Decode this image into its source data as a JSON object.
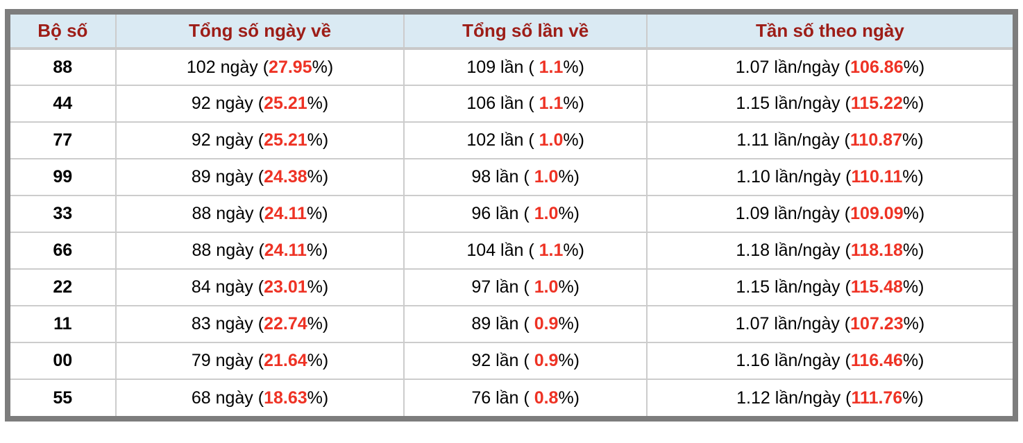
{
  "colors": {
    "header_bg": "#daeaf3",
    "header_text": "#9d1d17",
    "highlight_red": "#ee3224",
    "frame_border": "#7d7d7d",
    "grid_line": "#cccccc"
  },
  "table": {
    "columns": [
      {
        "label": "Bộ số"
      },
      {
        "label": "Tổng số ngày về"
      },
      {
        "label": "Tổng số lần về"
      },
      {
        "label": "Tần số theo ngày"
      }
    ],
    "rows": [
      {
        "pair": "88",
        "days": {
          "prefix": "102 ngày (",
          "highlight": "27.95",
          "suffix": "%)"
        },
        "times": {
          "prefix": "109 lần ( ",
          "highlight": "1.1",
          "suffix": "%)"
        },
        "freq": {
          "prefix": "1.07 lần/ngày (",
          "highlight": "106.86",
          "suffix": "%)"
        }
      },
      {
        "pair": "44",
        "days": {
          "prefix": "92 ngày (",
          "highlight": "25.21",
          "suffix": "%)"
        },
        "times": {
          "prefix": "106 lần ( ",
          "highlight": "1.1",
          "suffix": "%)"
        },
        "freq": {
          "prefix": "1.15 lần/ngày (",
          "highlight": "115.22",
          "suffix": "%)"
        }
      },
      {
        "pair": "77",
        "days": {
          "prefix": "92 ngày (",
          "highlight": "25.21",
          "suffix": "%)"
        },
        "times": {
          "prefix": "102 lần ( ",
          "highlight": "1.0",
          "suffix": "%)"
        },
        "freq": {
          "prefix": "1.11 lần/ngày (",
          "highlight": "110.87",
          "suffix": "%)"
        }
      },
      {
        "pair": "99",
        "days": {
          "prefix": "89 ngày (",
          "highlight": "24.38",
          "suffix": "%)"
        },
        "times": {
          "prefix": "98 lần ( ",
          "highlight": "1.0",
          "suffix": "%)"
        },
        "freq": {
          "prefix": "1.10 lần/ngày (",
          "highlight": "110.11",
          "suffix": "%)"
        }
      },
      {
        "pair": "33",
        "days": {
          "prefix": "88 ngày (",
          "highlight": "24.11",
          "suffix": "%)"
        },
        "times": {
          "prefix": "96 lần ( ",
          "highlight": "1.0",
          "suffix": "%)"
        },
        "freq": {
          "prefix": "1.09 lần/ngày (",
          "highlight": "109.09",
          "suffix": "%)"
        }
      },
      {
        "pair": "66",
        "days": {
          "prefix": "88 ngày (",
          "highlight": "24.11",
          "suffix": "%)"
        },
        "times": {
          "prefix": "104 lần ( ",
          "highlight": "1.1",
          "suffix": "%)"
        },
        "freq": {
          "prefix": "1.18 lần/ngày (",
          "highlight": "118.18",
          "suffix": "%)"
        }
      },
      {
        "pair": "22",
        "days": {
          "prefix": "84 ngày (",
          "highlight": "23.01",
          "suffix": "%)"
        },
        "times": {
          "prefix": "97 lần ( ",
          "highlight": "1.0",
          "suffix": "%)"
        },
        "freq": {
          "prefix": "1.15 lần/ngày (",
          "highlight": "115.48",
          "suffix": "%)"
        }
      },
      {
        "pair": "11",
        "days": {
          "prefix": "83 ngày (",
          "highlight": "22.74",
          "suffix": "%)"
        },
        "times": {
          "prefix": "89 lần ( ",
          "highlight": "0.9",
          "suffix": "%)"
        },
        "freq": {
          "prefix": "1.07 lần/ngày (",
          "highlight": "107.23",
          "suffix": "%)"
        }
      },
      {
        "pair": "00",
        "days": {
          "prefix": "79 ngày (",
          "highlight": "21.64",
          "suffix": "%)"
        },
        "times": {
          "prefix": "92 lần ( ",
          "highlight": "0.9",
          "suffix": "%)"
        },
        "freq": {
          "prefix": "1.16 lần/ngày (",
          "highlight": "116.46",
          "suffix": "%)"
        }
      },
      {
        "pair": "55",
        "days": {
          "prefix": "68 ngày (",
          "highlight": "18.63",
          "suffix": "%)"
        },
        "times": {
          "prefix": "76 lần ( ",
          "highlight": "0.8",
          "suffix": "%)"
        },
        "freq": {
          "prefix": "1.12 lần/ngày (",
          "highlight": "111.76",
          "suffix": "%)"
        }
      }
    ]
  }
}
